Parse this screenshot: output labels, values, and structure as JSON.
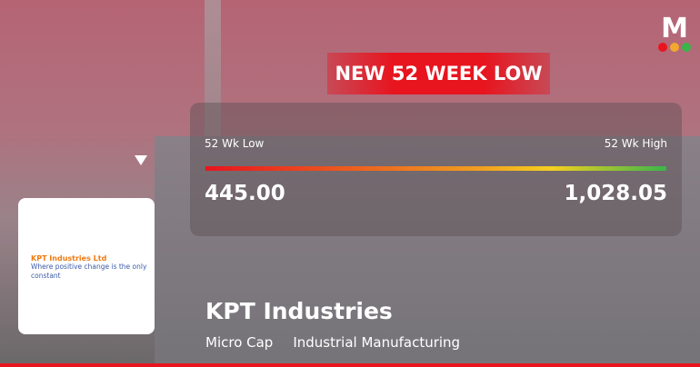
{
  "brand": {
    "logo_letter": "M",
    "dot_colors": [
      "#e8141e",
      "#f0a830",
      "#3ab54a"
    ]
  },
  "badge": "NEW 52 WEEK LOW",
  "range": {
    "low_label": "52 Wk Low",
    "high_label": "52 Wk High",
    "low_value": "445.00",
    "high_value": "1,028.05",
    "current_position_fraction": 0.0
  },
  "company": {
    "logo_name": "KPT Industries Ltd",
    "logo_tagline": "Where positive change is the only constant",
    "name": "KPT Industries",
    "cap": "Micro Cap",
    "sector": "Industrial Manufacturing"
  }
}
